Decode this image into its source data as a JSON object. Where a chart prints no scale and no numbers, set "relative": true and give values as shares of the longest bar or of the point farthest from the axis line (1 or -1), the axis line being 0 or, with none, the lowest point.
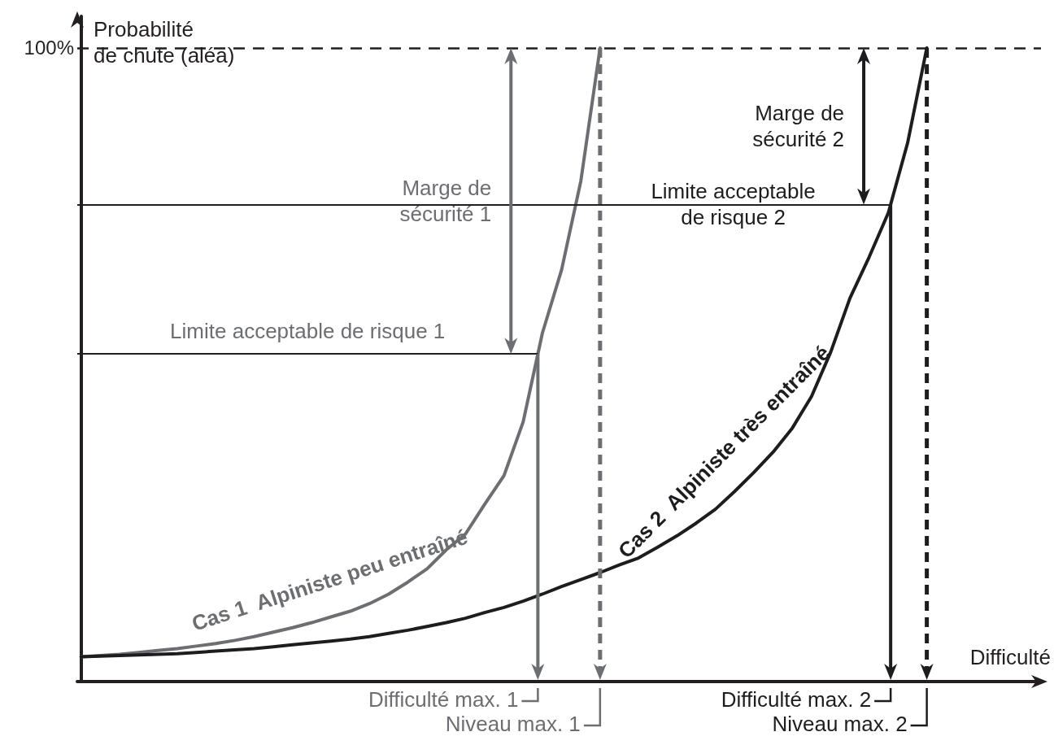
{
  "chart_data": {
    "type": "line",
    "relative": true,
    "marker": "none",
    "ylabel": "Probabilité\nde chute (aléa)",
    "xlabel": "Difficulté",
    "categories": [
      null,
      null,
      null,
      null,
      null,
      null,
      null,
      null,
      null,
      null,
      null,
      null,
      null,
      null,
      null,
      null,
      null,
      null,
      null,
      null,
      null,
      null,
      null,
      null,
      null,
      null,
      null,
      null,
      null,
      null,
      null,
      null,
      null,
      null,
      null,
      null,
      null,
      null,
      null,
      null,
      null,
      null,
      null,
      null,
      null
    ],
    "series": [
      {
        "name": "Cas 1  Alpiniste peu entraîné",
        "color": "#6d6e71",
        "values": [
          0.039,
          0.041,
          0.043,
          0.046,
          0.049,
          0.052,
          0.056,
          0.06,
          0.065,
          0.071,
          0.078,
          0.085,
          0.093,
          0.102,
          0.111,
          0.123,
          0.138,
          0.157,
          0.178,
          0.208,
          0.233,
          0.28,
          0.325,
          0.41,
          0.55,
          0.65,
          0.79,
          1.0,
          null,
          null,
          null,
          null,
          null,
          null,
          null,
          null,
          null,
          null,
          null,
          null,
          null,
          null,
          null,
          null,
          null
        ]
      },
      {
        "name": "Cas 2  Alpiniste très entraîné",
        "color": "#1d1d1f",
        "values": [
          0.039,
          0.04,
          0.041,
          0.042,
          0.043,
          0.044,
          0.046,
          0.048,
          0.05,
          0.052,
          0.055,
          0.058,
          0.061,
          0.064,
          0.067,
          0.071,
          0.076,
          0.081,
          0.087,
          0.093,
          0.1,
          0.109,
          0.117,
          0.127,
          0.138,
          0.15,
          0.161,
          0.172,
          0.184,
          0.195,
          0.212,
          0.23,
          0.25,
          0.272,
          0.3,
          0.33,
          0.362,
          0.4,
          0.45,
          0.52,
          0.605,
          0.67,
          0.74,
          0.85,
          1.0
        ]
      }
    ],
    "ref_lines": [
      {
        "axis": "y",
        "value": 1,
        "label": "100%",
        "line_style": "dashed",
        "color": "#231f20"
      },
      {
        "axis": "y",
        "value": 0.517,
        "label": "Limite acceptable de risque 1",
        "color": "#231f20"
      },
      {
        "axis": "y",
        "value": 0.753,
        "label": "Limite acceptable\nde risque 2",
        "color": "#231f20"
      }
    ],
    "annotations": [
      "Marge de\nsécurité 1",
      "Marge de\nsécurité 2",
      "Difficulté max. 1",
      "Niveau max. 1",
      "Difficulté max. 2",
      "Niveau max. 2"
    ]
  }
}
